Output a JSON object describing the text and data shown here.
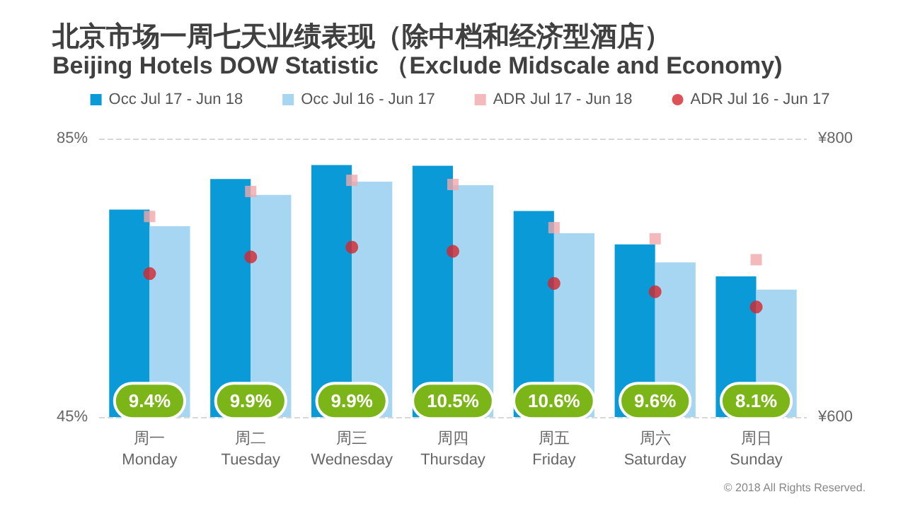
{
  "chart_data": {
    "type": "bar",
    "title": "北京市场一周七天业绩表现（除中档和经济型酒店）",
    "subtitle": "Beijing Hotels DOW Statistic （Exclude Midscale and Economy)",
    "categories": [
      "周一\nMonday",
      "周二\nTuesday",
      "周三\nWednesday",
      "周四\nThursday",
      "周五\nFriday",
      "周六\nSaturday",
      "周日\nSunday"
    ],
    "series": [
      {
        "name": "Occ Jul 17 - Jun 18",
        "color": "#0a9ad8",
        "values": [
          74.8,
          79.2,
          81.2,
          81.1,
          74.6,
          69.8,
          65.2
        ]
      },
      {
        "name": "Occ Jul 16 - Jun 17",
        "color": "#a6d6f1",
        "values": [
          72.4,
          76.9,
          78.8,
          78.3,
          71.4,
          67.2,
          63.3
        ]
      },
      {
        "name": "ADR Jul 17 - Jun 18",
        "type": "scatter",
        "axis": "y2",
        "marker": "square",
        "color": "#f0a8aa",
        "values": [
          744,
          762,
          770,
          767,
          736,
          728,
          713
        ]
      },
      {
        "name": "ADR Jul 16 - Jun 17",
        "type": "scatter",
        "axis": "y2",
        "marker": "circle",
        "color": "#d4262e",
        "values": [
          703,
          715,
          722,
          719,
          696,
          690,
          679
        ]
      }
    ],
    "ylim": [
      45,
      85
    ],
    "yticks": [
      {
        "value": 45,
        "label": "45%"
      },
      {
        "value": 85,
        "label": "85%"
      }
    ],
    "y2lim": [
      600,
      800
    ],
    "y2ticks": [
      {
        "value": 600,
        "label": "¥600"
      },
      {
        "value": 800,
        "label": "¥800"
      }
    ],
    "grid": "y",
    "legend": "top",
    "annotations": [
      {
        "text": "9.4%",
        "x": "周一\nMonday",
        "y": 47.3
      },
      {
        "text": "9.9%",
        "x": "周二\nTuesday",
        "y": 47.3
      },
      {
        "text": "9.9%",
        "x": "周三\nWednesday",
        "y": 47.3
      },
      {
        "text": "10.5%",
        "x": "周四\nThursday",
        "y": 47.3
      },
      {
        "text": "10.6%",
        "x": "周五\nFriday",
        "y": 47.3
      },
      {
        "text": "9.6%",
        "x": "周六\nSaturday",
        "y": 47.3
      },
      {
        "text": "8.1%",
        "x": "周日\nSunday",
        "y": 47.3
      },
      "© 2018 All Rights Reserved."
    ]
  }
}
